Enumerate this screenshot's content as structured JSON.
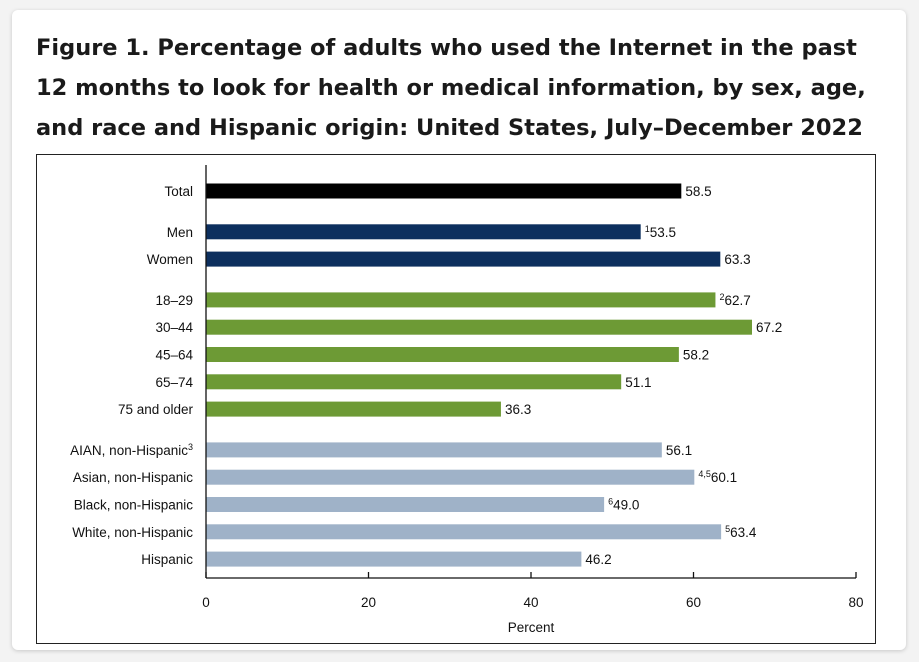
{
  "title": "Figure 1. Percentage of adults who used the Internet in the past 12 months to look for health or medical information, by sex, age, and race and Hispanic origin: United States, July–December 2022",
  "chart_data": {
    "type": "bar",
    "orientation": "horizontal",
    "xlabel": "Percent",
    "xlim": [
      0,
      80
    ],
    "xticks": [
      0,
      20,
      40,
      60,
      80
    ],
    "colors": {
      "total": "#000000",
      "sex": "#0d2f5e",
      "age": "#6d9a35",
      "race": "#9fb2c8"
    },
    "groups": [
      {
        "name": "total",
        "items": [
          {
            "label": "Total",
            "label_sup": "",
            "value": 58.5,
            "value_text": "58.5",
            "value_sup": ""
          }
        ]
      },
      {
        "name": "sex",
        "items": [
          {
            "label": "Men",
            "label_sup": "",
            "value": 53.5,
            "value_text": "53.5",
            "value_sup": "1"
          },
          {
            "label": "Women",
            "label_sup": "",
            "value": 63.3,
            "value_text": "63.3",
            "value_sup": ""
          }
        ]
      },
      {
        "name": "age",
        "items": [
          {
            "label": "18–29",
            "label_sup": "",
            "value": 62.7,
            "value_text": "62.7",
            "value_sup": "2"
          },
          {
            "label": "30–44",
            "label_sup": "",
            "value": 67.2,
            "value_text": "67.2",
            "value_sup": ""
          },
          {
            "label": "45–64",
            "label_sup": "",
            "value": 58.2,
            "value_text": "58.2",
            "value_sup": ""
          },
          {
            "label": "65–74",
            "label_sup": "",
            "value": 51.1,
            "value_text": "51.1",
            "value_sup": ""
          },
          {
            "label": "75 and older",
            "label_sup": "",
            "value": 36.3,
            "value_text": "36.3",
            "value_sup": ""
          }
        ]
      },
      {
        "name": "race",
        "items": [
          {
            "label": "AIAN, non-Hispanic",
            "label_sup": "3",
            "value": 56.1,
            "value_text": "56.1",
            "value_sup": ""
          },
          {
            "label": "Asian, non-Hispanic",
            "label_sup": "",
            "value": 60.1,
            "value_text": "60.1",
            "value_sup": "4,5"
          },
          {
            "label": "Black, non-Hispanic",
            "label_sup": "",
            "value": 49.0,
            "value_text": "49.0",
            "value_sup": "6"
          },
          {
            "label": "White, non-Hispanic",
            "label_sup": "",
            "value": 63.4,
            "value_text": "63.4",
            "value_sup": "5"
          },
          {
            "label": "Hispanic",
            "label_sup": "",
            "value": 46.2,
            "value_text": "46.2",
            "value_sup": ""
          }
        ]
      }
    ]
  }
}
